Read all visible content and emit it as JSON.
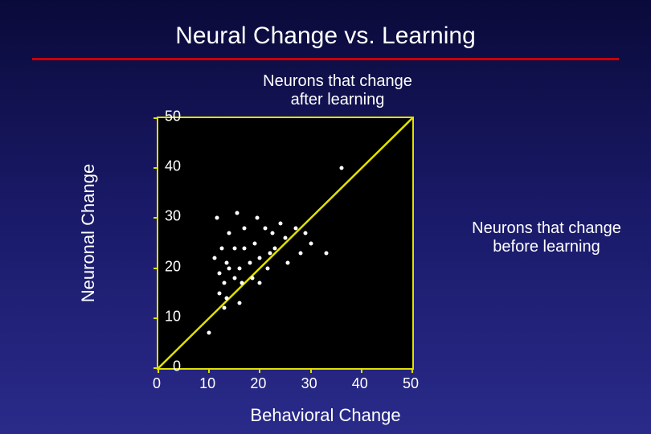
{
  "title": "Neural Change vs. Learning",
  "annotations": {
    "top": "Neurons that change\nafter learning",
    "right": "Neurons that change\nbefore learning"
  },
  "axes": {
    "xlabel": "Behavioral Change",
    "ylabel": "Neuronal Change"
  },
  "chart": {
    "type": "scatter",
    "xlim": [
      0,
      50
    ],
    "ylim": [
      0,
      50
    ],
    "xtick_step": 10,
    "ytick_step": 10,
    "xticks": [
      "0",
      "10",
      "20",
      "30",
      "40",
      "50"
    ],
    "yticks": [
      "0",
      "10",
      "20",
      "30",
      "40",
      "50"
    ],
    "background_color": "#000000",
    "border_color": "#e0e000",
    "diagonal_color": "#e0e000",
    "diagonal_width": 2,
    "point_color": "#ffffff",
    "point_size": 5,
    "tick_fontsize": 18,
    "label_fontsize": 22,
    "title_fontsize": 30,
    "points": [
      [
        10,
        7
      ],
      [
        11,
        22
      ],
      [
        11.5,
        30
      ],
      [
        12,
        15
      ],
      [
        12,
        19
      ],
      [
        12.5,
        24
      ],
      [
        13,
        12
      ],
      [
        13,
        17
      ],
      [
        13.5,
        14
      ],
      [
        13.5,
        21
      ],
      [
        14,
        20
      ],
      [
        14,
        27
      ],
      [
        15,
        18
      ],
      [
        15,
        24
      ],
      [
        15.5,
        31
      ],
      [
        16,
        13
      ],
      [
        16,
        20
      ],
      [
        16.5,
        17
      ],
      [
        17,
        24
      ],
      [
        17,
        28
      ],
      [
        18,
        21
      ],
      [
        18.5,
        18
      ],
      [
        19,
        25
      ],
      [
        19.5,
        30
      ],
      [
        20,
        22
      ],
      [
        20,
        17
      ],
      [
        21,
        28
      ],
      [
        21.5,
        20
      ],
      [
        22,
        23
      ],
      [
        22.5,
        27
      ],
      [
        23,
        24
      ],
      [
        24,
        29
      ],
      [
        25,
        26
      ],
      [
        25.5,
        21
      ],
      [
        27,
        28
      ],
      [
        28,
        23
      ],
      [
        29,
        27
      ],
      [
        30,
        25
      ],
      [
        33,
        23
      ],
      [
        36,
        40
      ]
    ]
  },
  "style": {
    "slide_bg_top": "#0a0a3a",
    "slide_bg_bottom": "#2a2a8a",
    "rule_color": "#cc0000",
    "text_color": "#ffffff"
  }
}
